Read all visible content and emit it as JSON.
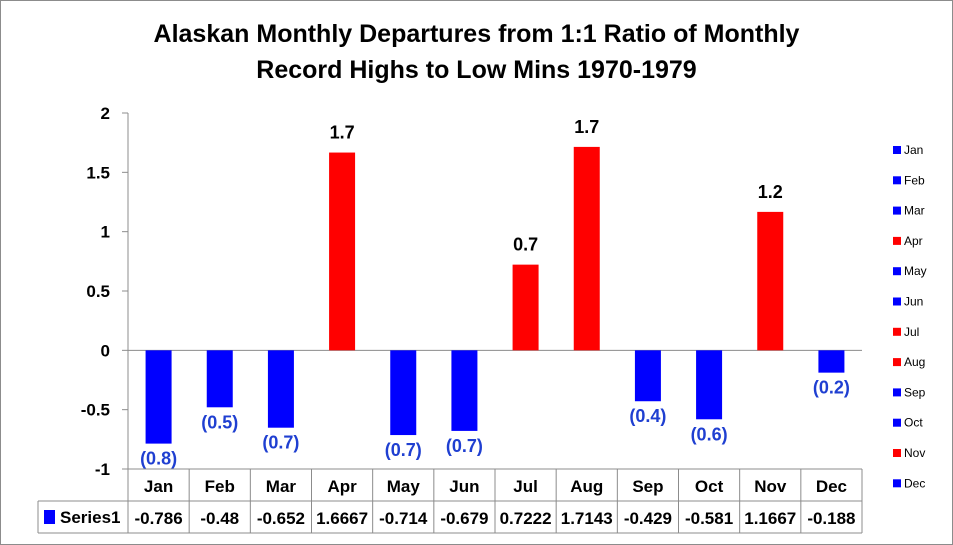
{
  "chart_data": {
    "type": "bar",
    "title_lines": [
      "Alaskan Monthly Departures from 1:1 Ratio of Monthly",
      "Record Highs to Low Mins 1970-1979"
    ],
    "categories": [
      "Jan",
      "Feb",
      "Mar",
      "Apr",
      "May",
      "Jun",
      "Jul",
      "Aug",
      "Sep",
      "Oct",
      "Nov",
      "Dec"
    ],
    "series": [
      {
        "name": "Series1",
        "values": [
          -0.786,
          -0.48,
          -0.652,
          1.6667,
          -0.714,
          -0.679,
          0.7222,
          1.7143,
          -0.429,
          -0.581,
          1.1667,
          -0.188
        ],
        "table_values": [
          "-0.786",
          "-0.48",
          "-0.652",
          "1.6667",
          "-0.714",
          "-0.679",
          "0.7222",
          "1.7143",
          "-0.429",
          "-0.581",
          "1.1667",
          "-0.188"
        ],
        "data_labels": [
          "(0.8)",
          "(0.5)",
          "(0.7)",
          "1.7",
          "(0.7)",
          "(0.7)",
          "0.7",
          "1.7",
          "(0.4)",
          "(0.6)",
          "1.2",
          "(0.2)"
        ]
      }
    ],
    "ylim": [
      -1,
      2
    ],
    "yticks": [
      "2",
      "1.5",
      "1",
      "0.5",
      "0",
      "-0.5",
      "-1"
    ],
    "ytick_values": [
      2,
      1.5,
      1,
      0.5,
      0,
      -0.5,
      -1
    ],
    "xlabel": "",
    "ylabel": "",
    "legend_placement": "right",
    "legend_entries": [
      "Jan",
      "Feb",
      "Mar",
      "Apr",
      "May",
      "Jun",
      "Jul",
      "Aug",
      "Sep",
      "Oct",
      "Nov",
      "Dec"
    ],
    "data_table": true,
    "grid": false,
    "colors": {
      "positive": "#ff0000",
      "negative": "#0000ff",
      "negative_label": "#1f3fd1",
      "positive_label": "#000000",
      "axis": "#8c8c8c"
    }
  }
}
